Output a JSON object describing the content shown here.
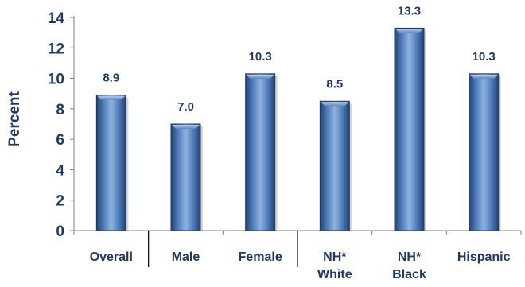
{
  "chart_data": {
    "type": "bar",
    "title": "",
    "xlabel": "",
    "ylabel": "Percent",
    "ylim": [
      0,
      14
    ],
    "yticks": [
      "0",
      "2",
      "4",
      "6",
      "8",
      "10",
      "12",
      "14"
    ],
    "categories": [
      [
        "Overall"
      ],
      [
        "Male"
      ],
      [
        "Female"
      ],
      [
        "NH*",
        "White"
      ],
      [
        "NH*",
        "Black"
      ],
      [
        "Hispanic"
      ]
    ],
    "values": [
      8.9,
      7.0,
      10.3,
      8.5,
      13.3,
      10.3
    ],
    "data_labels": [
      "8.9",
      "7.0",
      "10.3",
      "8.5",
      "13.3",
      "10.3"
    ],
    "grid": false,
    "legend": "none",
    "colors": {
      "bar_light": "#8FB3E0",
      "bar_mid": "#4F81BD",
      "bar_dark": "#23426E",
      "text": "#1F3864",
      "axis": "#808080"
    }
  }
}
